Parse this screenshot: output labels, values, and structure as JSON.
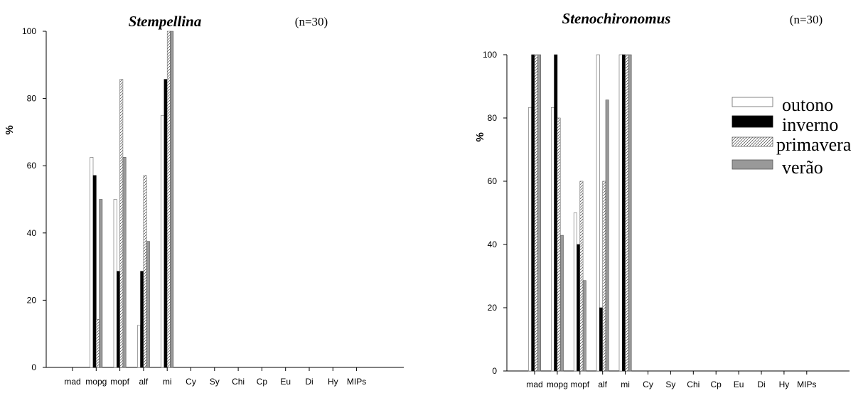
{
  "chart_data": [
    {
      "type": "bar",
      "title": "Stempellina",
      "annotation": "(n=30)",
      "xlabel": "",
      "ylabel": "%",
      "ylim": [
        0,
        100
      ],
      "yticks": [
        0,
        20,
        40,
        60,
        80,
        100
      ],
      "grid": false,
      "categories": [
        "mad",
        "mopg",
        "mopf",
        "alf",
        "mi",
        "Cy",
        "Sy",
        "Chi",
        "Cp",
        "Eu",
        "Di",
        "Hy",
        "MIPs"
      ],
      "series": [
        {
          "name": "outono",
          "values": [
            0,
            62.5,
            50,
            12.5,
            75,
            0,
            0,
            0,
            0,
            0,
            0,
            0,
            0
          ]
        },
        {
          "name": "inverno",
          "values": [
            0,
            57.1,
            28.6,
            28.6,
            85.7,
            0,
            0,
            0,
            0,
            0,
            0,
            0,
            0
          ]
        },
        {
          "name": "primavera",
          "values": [
            0,
            14.3,
            85.7,
            57.1,
            100,
            0,
            0,
            0,
            0,
            0,
            0,
            0,
            0
          ]
        },
        {
          "name": "verão",
          "values": [
            0,
            50,
            62.5,
            37.5,
            100,
            0,
            0,
            0,
            0,
            0,
            0,
            0,
            0
          ]
        }
      ]
    },
    {
      "type": "bar",
      "title": "Stenochironomus",
      "annotation": "(n=30)",
      "xlabel": "",
      "ylabel": "%",
      "ylim": [
        0,
        100
      ],
      "yticks": [
        0,
        20,
        40,
        60,
        80,
        100
      ],
      "grid": false,
      "legend_position": "right",
      "categories": [
        "mad",
        "mopg",
        "mopf",
        "alf",
        "mi",
        "Cy",
        "Sy",
        "Chi",
        "Cp",
        "Eu",
        "Di",
        "Hy",
        "MIPs"
      ],
      "series": [
        {
          "name": "outono",
          "values": [
            83.3,
            83.3,
            50,
            100,
            100,
            0,
            0,
            0,
            0,
            0,
            0,
            0,
            0
          ]
        },
        {
          "name": "inverno",
          "values": [
            100,
            100,
            40,
            20,
            100,
            0,
            0,
            0,
            0,
            0,
            0,
            0,
            0
          ]
        },
        {
          "name": "primavera",
          "values": [
            100,
            80,
            60,
            60,
            100,
            0,
            0,
            0,
            0,
            0,
            0,
            0,
            0
          ]
        },
        {
          "name": "verão",
          "values": [
            100,
            42.9,
            28.6,
            85.7,
            100,
            0,
            0,
            0,
            0,
            0,
            0,
            0,
            0
          ]
        }
      ]
    }
  ],
  "series_styles": {
    "outono": {
      "fill": "#ffffff",
      "stroke": "#666666",
      "pattern": "none"
    },
    "inverno": {
      "fill": "#000000",
      "stroke": "#000000",
      "pattern": "none"
    },
    "primavera": {
      "fill": "#ffffff",
      "stroke": "#666666",
      "pattern": "diagonal-hatch"
    },
    "verão": {
      "fill": "#999999",
      "stroke": "#555555",
      "pattern": "none"
    }
  }
}
